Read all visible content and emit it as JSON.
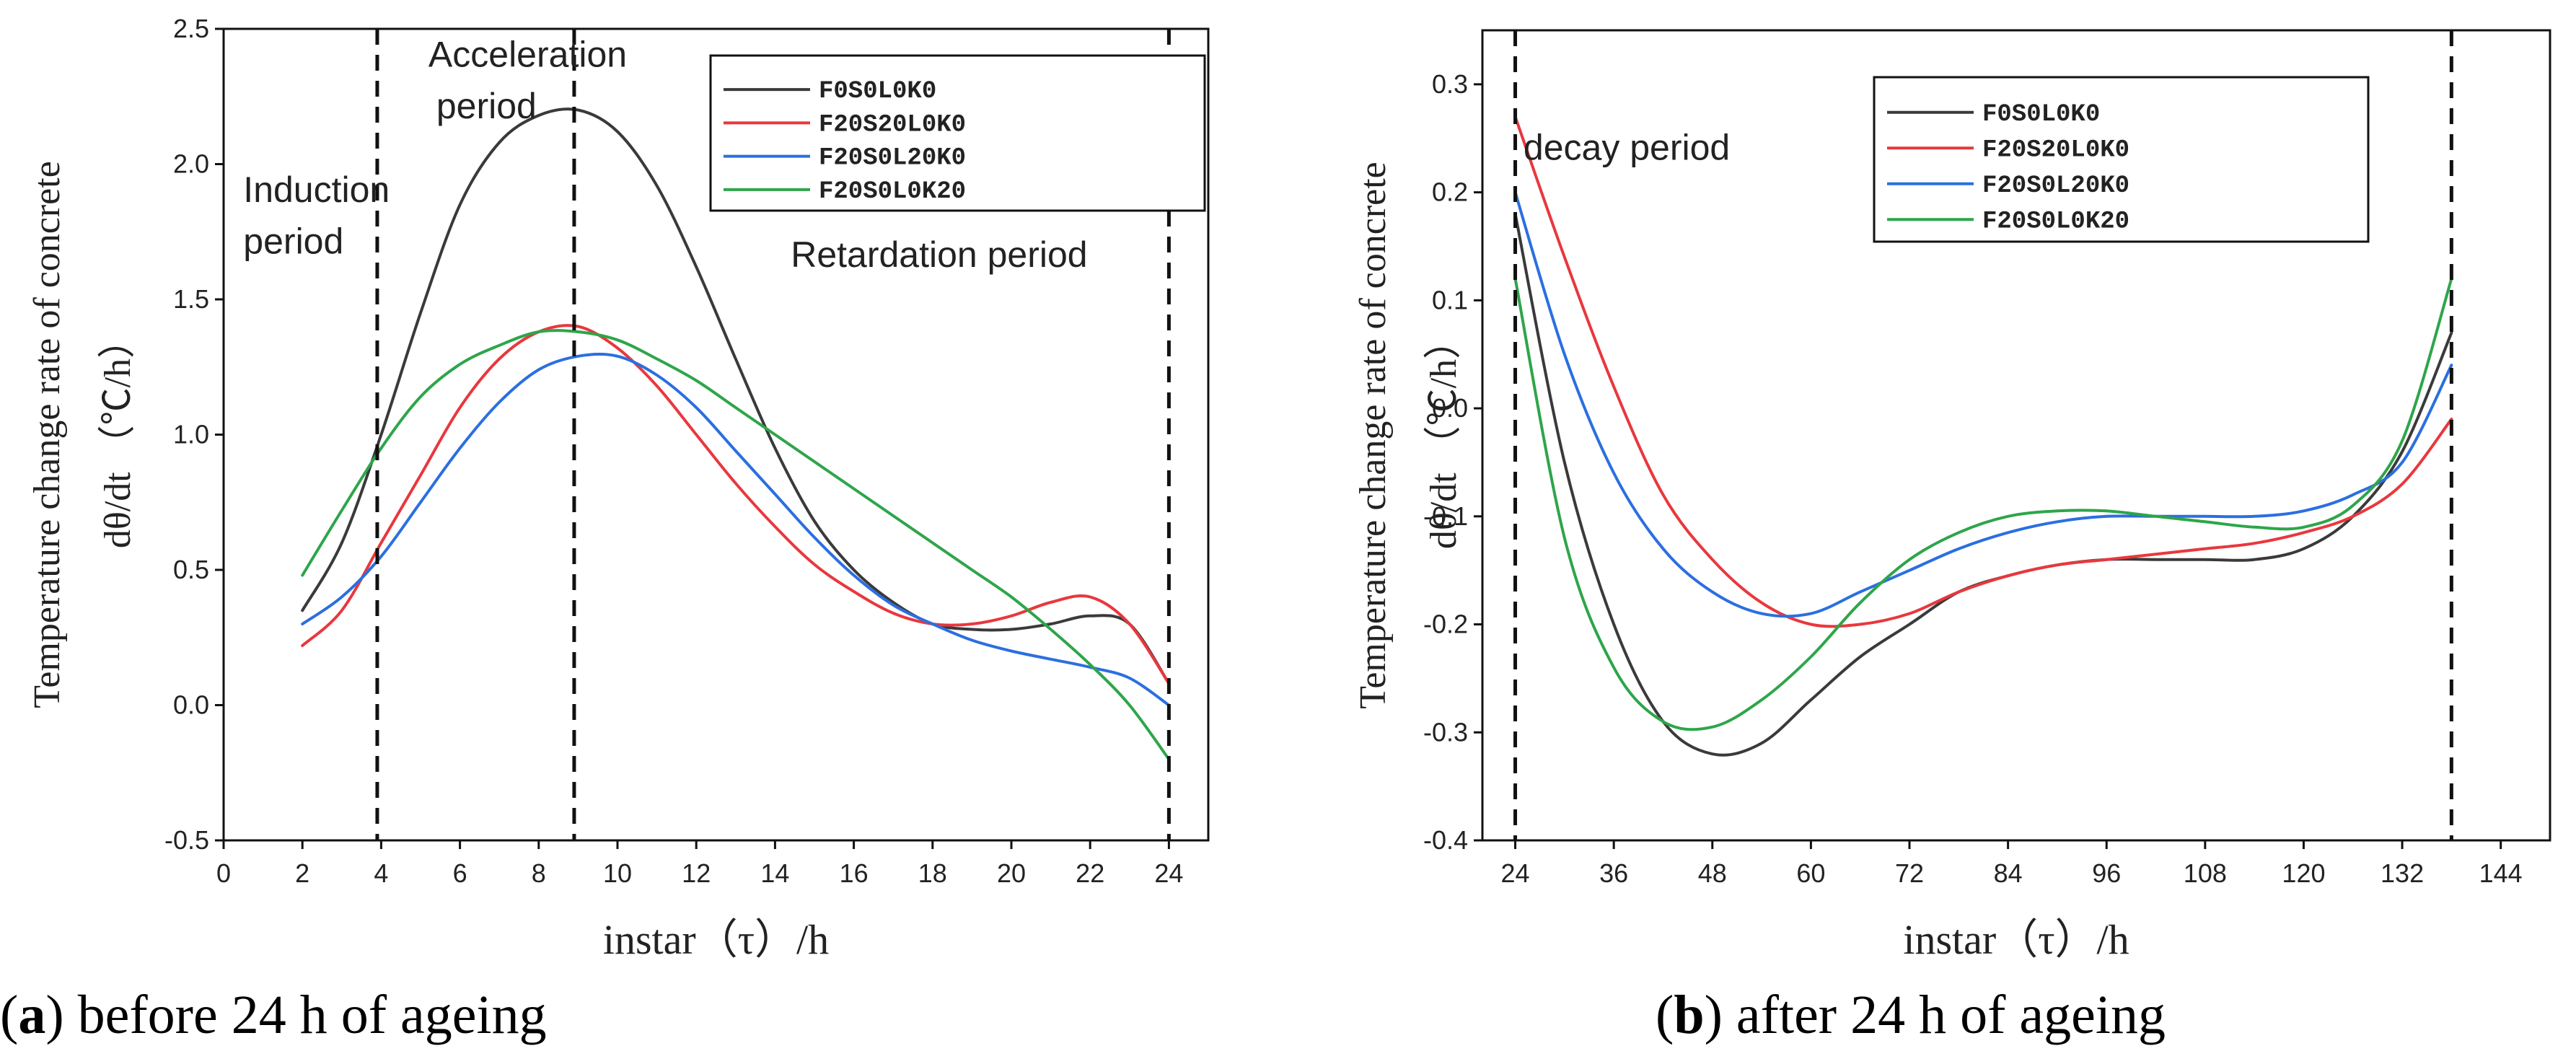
{
  "chart_data": [
    {
      "panel": "a",
      "type": "line",
      "caption_letter": "a",
      "caption_text": "before 24 h of ageing",
      "xlabel": "instar（τ）/h",
      "ylabel_line1": "Temperature change rate of concrete",
      "ylabel_line2": "dθ/dt （℃/h）",
      "xlim": [
        0,
        25
      ],
      "ylim": [
        -0.5,
        2.5
      ],
      "xticks": [
        0,
        2,
        4,
        6,
        8,
        10,
        12,
        14,
        16,
        18,
        20,
        22,
        24
      ],
      "yticks": [
        -0.5,
        0.0,
        0.5,
        1.0,
        1.5,
        2.0,
        2.5
      ],
      "ytick_labels": [
        "-0.5",
        "0.0",
        "0.5",
        "1.0",
        "1.5",
        "2.0",
        "2.5"
      ],
      "vlines": [
        3.9,
        8.9,
        24
      ],
      "annotations": [
        {
          "text": "Acceleration",
          "x": 5.2,
          "y": 2.36
        },
        {
          "text": "period",
          "x": 5.4,
          "y": 2.17
        },
        {
          "text": "Induction",
          "x": 0.5,
          "y": 1.86
        },
        {
          "text": "period",
          "x": 0.5,
          "y": 1.67
        },
        {
          "text": "Retardation period",
          "x": 14.4,
          "y": 1.62
        }
      ],
      "legend": {
        "position": "top-right"
      },
      "series": [
        {
          "name": "F0S0L0K0",
          "color": "#3a3a3a",
          "x": [
            2,
            3,
            4,
            5,
            6,
            7,
            8,
            9,
            10,
            11,
            12,
            13,
            14,
            15,
            16,
            17,
            18,
            19,
            20,
            21,
            22,
            23,
            24
          ],
          "y": [
            0.35,
            0.6,
            1.0,
            1.45,
            1.85,
            2.08,
            2.18,
            2.2,
            2.12,
            1.92,
            1.62,
            1.28,
            0.95,
            0.68,
            0.5,
            0.38,
            0.3,
            0.28,
            0.28,
            0.3,
            0.33,
            0.3,
            0.08
          ]
        },
        {
          "name": "F20S20L0K0",
          "color": "#e8383d",
          "x": [
            2,
            3,
            4,
            5,
            6,
            7,
            8,
            9,
            10,
            11,
            12,
            13,
            14,
            15,
            16,
            17,
            18,
            19,
            20,
            21,
            22,
            23,
            24
          ],
          "y": [
            0.22,
            0.35,
            0.6,
            0.85,
            1.1,
            1.28,
            1.38,
            1.4,
            1.32,
            1.18,
            1.0,
            0.82,
            0.66,
            0.52,
            0.42,
            0.34,
            0.3,
            0.3,
            0.33,
            0.38,
            0.4,
            0.3,
            0.08
          ]
        },
        {
          "name": "F20S0L20K0",
          "color": "#2b6fe0",
          "x": [
            2,
            3,
            4,
            5,
            6,
            7,
            8,
            9,
            10,
            11,
            12,
            13,
            14,
            15,
            16,
            17,
            18,
            19,
            20,
            21,
            22,
            23,
            24
          ],
          "y": [
            0.3,
            0.4,
            0.55,
            0.75,
            0.95,
            1.12,
            1.24,
            1.29,
            1.29,
            1.22,
            1.1,
            0.94,
            0.78,
            0.62,
            0.48,
            0.37,
            0.3,
            0.24,
            0.2,
            0.17,
            0.14,
            0.1,
            0.0
          ]
        },
        {
          "name": "F20S0L0K20",
          "color": "#2ea54a",
          "x": [
            2,
            3,
            4,
            5,
            6,
            7,
            8,
            9,
            10,
            11,
            12,
            13,
            14,
            15,
            16,
            17,
            18,
            19,
            20,
            21,
            22,
            23,
            24
          ],
          "y": [
            0.48,
            0.72,
            0.95,
            1.14,
            1.26,
            1.33,
            1.38,
            1.38,
            1.35,
            1.28,
            1.2,
            1.1,
            1.0,
            0.9,
            0.8,
            0.7,
            0.6,
            0.5,
            0.4,
            0.28,
            0.15,
            0.0,
            -0.2
          ]
        }
      ]
    },
    {
      "panel": "b",
      "type": "line",
      "caption_letter": "b",
      "caption_text": "after 24 h of ageing",
      "xlabel": "instar（τ）/h",
      "ylabel_line1": "Temperature change rate of concrete",
      "ylabel_line2": "dθ/dt （℃/h）",
      "xlim": [
        20,
        150
      ],
      "ylim": [
        -0.4,
        0.35
      ],
      "xticks": [
        24,
        36,
        48,
        60,
        72,
        84,
        96,
        108,
        120,
        132,
        144
      ],
      "yticks": [
        -0.4,
        -0.3,
        -0.2,
        -0.1,
        0.0,
        0.1,
        0.2,
        0.3
      ],
      "ytick_labels": [
        "-0.4",
        "-0.3",
        "-0.2",
        "-0.1",
        "0.0",
        "0.1",
        "0.2",
        "0.3"
      ],
      "vlines": [
        24,
        138
      ],
      "annotations": [
        {
          "text": "decay period",
          "x": 25,
          "y": 0.23
        }
      ],
      "legend": {
        "position": "top-center"
      },
      "series": [
        {
          "name": "F0S0L0K0",
          "color": "#3a3a3a",
          "x": [
            24,
            30,
            36,
            42,
            48,
            54,
            60,
            66,
            72,
            78,
            84,
            90,
            96,
            102,
            108,
            114,
            120,
            126,
            132,
            138
          ],
          "y": [
            0.18,
            -0.05,
            -0.2,
            -0.29,
            -0.32,
            -0.31,
            -0.27,
            -0.23,
            -0.2,
            -0.17,
            -0.155,
            -0.145,
            -0.14,
            -0.14,
            -0.14,
            -0.14,
            -0.13,
            -0.1,
            -0.04,
            0.07
          ]
        },
        {
          "name": "F20S20L0K0",
          "color": "#e8383d",
          "x": [
            24,
            30,
            36,
            42,
            48,
            54,
            60,
            66,
            72,
            78,
            84,
            90,
            96,
            102,
            108,
            114,
            120,
            126,
            132,
            138
          ],
          "y": [
            0.27,
            0.14,
            0.02,
            -0.08,
            -0.14,
            -0.18,
            -0.2,
            -0.2,
            -0.19,
            -0.17,
            -0.155,
            -0.145,
            -0.14,
            -0.135,
            -0.13,
            -0.125,
            -0.115,
            -0.1,
            -0.07,
            -0.01
          ]
        },
        {
          "name": "F20S0L20K0",
          "color": "#2b6fe0",
          "x": [
            24,
            30,
            36,
            42,
            48,
            54,
            60,
            66,
            72,
            78,
            84,
            90,
            96,
            102,
            108,
            114,
            120,
            126,
            132,
            138
          ],
          "y": [
            0.2,
            0.05,
            -0.06,
            -0.13,
            -0.17,
            -0.19,
            -0.19,
            -0.17,
            -0.15,
            -0.13,
            -0.115,
            -0.105,
            -0.1,
            -0.1,
            -0.1,
            -0.1,
            -0.095,
            -0.08,
            -0.05,
            0.04
          ]
        },
        {
          "name": "F20S0L0K20",
          "color": "#2ea54a",
          "x": [
            24,
            30,
            36,
            42,
            48,
            54,
            60,
            66,
            72,
            78,
            84,
            90,
            96,
            102,
            108,
            114,
            120,
            126,
            132,
            138
          ],
          "y": [
            0.12,
            -0.12,
            -0.24,
            -0.29,
            -0.295,
            -0.27,
            -0.23,
            -0.18,
            -0.14,
            -0.115,
            -0.1,
            -0.095,
            -0.095,
            -0.1,
            -0.105,
            -0.11,
            -0.11,
            -0.09,
            -0.03,
            0.12
          ]
        }
      ]
    }
  ]
}
